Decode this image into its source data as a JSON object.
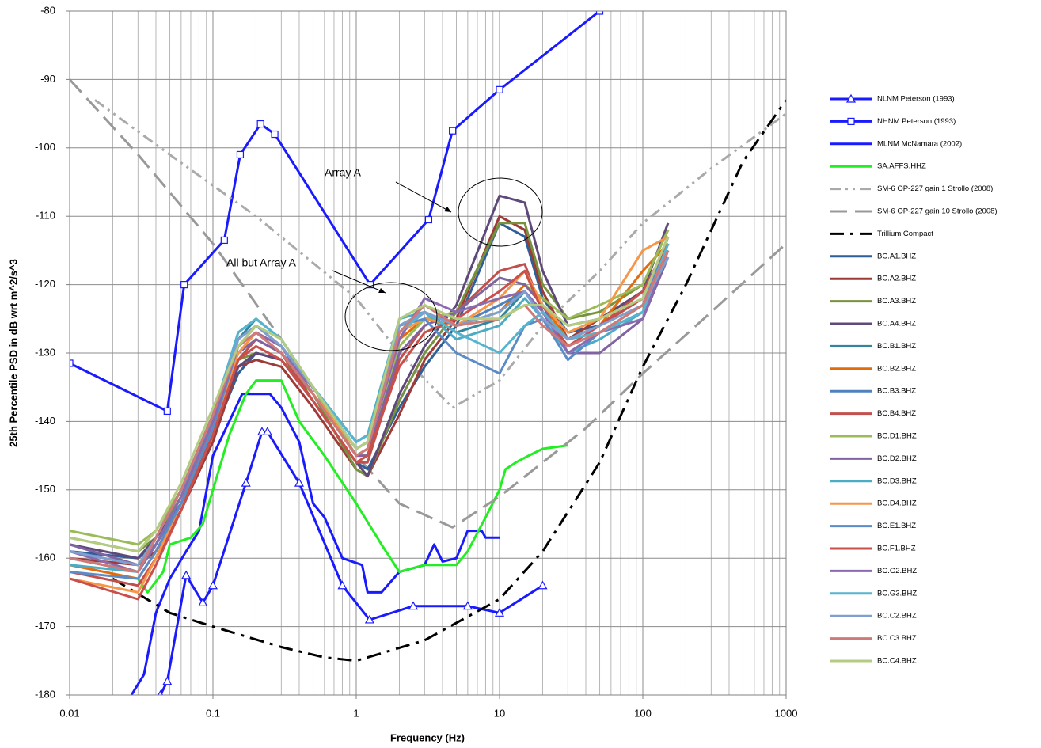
{
  "chart_data": {
    "type": "line",
    "x_label": "Frequency (Hz)",
    "y_label": "25th Percentile PSD in dB wrt m^2/s^3",
    "xscale": "log",
    "xlim": [
      0.01,
      1000
    ],
    "ylim": [
      -180,
      -80
    ],
    "xticks": [
      0.01,
      0.1,
      1,
      10,
      100,
      1000
    ],
    "xminorticks": [
      0.02,
      0.03,
      0.04,
      0.05,
      0.06,
      0.07,
      0.08,
      0.09,
      0.2,
      0.3,
      0.4,
      0.5,
      0.6,
      0.7,
      0.8,
      0.9,
      2,
      3,
      4,
      5,
      6,
      7,
      8,
      9,
      20,
      30,
      40,
      50,
      60,
      70,
      80,
      90,
      200,
      300,
      400,
      500,
      600,
      700,
      800,
      900
    ],
    "yticks": [
      -180,
      -170,
      -160,
      -150,
      -140,
      -130,
      -120,
      -110,
      -100,
      -90,
      -80
    ],
    "grid": true,
    "legend": "right",
    "annotations": [
      "Array A",
      "All but Array A"
    ],
    "x": [
      0.01,
      0.03,
      0.04,
      0.06,
      0.1,
      0.15,
      0.2,
      0.3,
      0.5,
      1,
      1.2,
      2,
      3,
      5,
      10,
      15,
      20,
      30,
      50,
      100,
      150
    ],
    "series": [
      {
        "name": "NLNM Peterson (1993)",
        "color": "#1a1aff",
        "marker": "triangle",
        "x": [
          0.043,
          0.048,
          0.065,
          0.085,
          0.1,
          0.17,
          0.22,
          0.24,
          0.4,
          0.8,
          1.24,
          2.5,
          6,
          10,
          20
        ],
        "values": [
          -180,
          -178,
          -162.5,
          -166.5,
          -164,
          -149,
          -141.5,
          -141.5,
          -149,
          -164,
          -169,
          -167,
          -167,
          -168,
          -164
        ]
      },
      {
        "name": "NHNM Peterson (1993)",
        "color": "#1a1aff",
        "marker": "square",
        "x": [
          0.01,
          0.048,
          0.063,
          0.12,
          0.155,
          0.215,
          0.27,
          1.25,
          3.2,
          4.7,
          10,
          50
        ],
        "values": [
          -131.5,
          -138.5,
          -120,
          -113.5,
          -101,
          -96.5,
          -98,
          -120,
          -110.5,
          -97.5,
          -91.5,
          -80
        ]
      },
      {
        "name": "MLNM McNamara (2002)",
        "color": "#1a1aff",
        "x": [
          0.027,
          0.033,
          0.04,
          0.05,
          0.065,
          0.08,
          0.1,
          0.13,
          0.16,
          0.25,
          0.3,
          0.4,
          0.5,
          0.6,
          0.8,
          1.1,
          1.2,
          1.5,
          2,
          3,
          3.5,
          4,
          5,
          6,
          7.5,
          8,
          10
        ],
        "values": [
          -180,
          -177,
          -168,
          -163,
          -159,
          -156,
          -145,
          -140,
          -136,
          -136,
          -138,
          -143,
          -152,
          -154,
          -160,
          -161,
          -165,
          -165,
          -162,
          -161,
          -158,
          -160.5,
          -160,
          -156,
          -156,
          -157,
          -157
        ]
      },
      {
        "name": "SA.AFFS.HHZ",
        "color": "#22ee22",
        "x": [
          0.03,
          0.035,
          0.045,
          0.05,
          0.07,
          0.085,
          0.1,
          0.13,
          0.17,
          0.2,
          0.3,
          0.4,
          0.6,
          1,
          1.5,
          2,
          3,
          5,
          6,
          8,
          10,
          11,
          13,
          16,
          20,
          30
        ],
        "values": [
          -163,
          -165,
          -162,
          -158,
          -157,
          -155,
          -150,
          -142,
          -136,
          -134,
          -134,
          -140,
          -145,
          -152,
          -158,
          -162,
          -161,
          -161,
          -159,
          -154,
          -150,
          -147,
          -146,
          -145,
          -144,
          -143.5
        ]
      },
      {
        "name": "SM-6 OP-227 gain 1 Strollo (2008)",
        "color": "#aaaaaa",
        "dash": "dash-dot-dot",
        "x": [
          0.015,
          0.05,
          0.2,
          1,
          2,
          4.7,
          10,
          20,
          50,
          100,
          300,
          1000
        ],
        "values": [
          -93,
          -101,
          -110,
          -122,
          -130,
          -138,
          -134,
          -126,
          -118,
          -111,
          -103,
          -95
        ]
      },
      {
        "name": "SM-6 OP-227 gain 10 Strollo (2008)",
        "color": "#999999",
        "dash": "long-dash",
        "x": [
          0.01,
          0.03,
          0.1,
          0.3,
          1,
          2,
          4.7,
          10,
          20,
          40,
          100,
          300,
          1000
        ],
        "values": [
          -90,
          -101,
          -114,
          -128,
          -145,
          -152,
          -155.5,
          -151,
          -146,
          -141,
          -133,
          -124,
          -114
        ]
      },
      {
        "name": "Trillium Compact",
        "color": "#000000",
        "dash": "dash-dot",
        "x": [
          0.02,
          0.05,
          0.1,
          0.3,
          0.6,
          1,
          3,
          10,
          20,
          50,
          100,
          200,
          500,
          1000
        ],
        "values": [
          -163,
          -168,
          -170,
          -173,
          -174.5,
          -175,
          -172,
          -166,
          -159,
          -146,
          -132,
          -120,
          -102,
          -93
        ]
      },
      {
        "name": "BC.A1.BHZ",
        "color": "#2f5f98",
        "values": [
          -159,
          -160,
          -158,
          -152,
          -142,
          -133,
          -130,
          -131,
          -137,
          -146,
          -147,
          -138,
          -132,
          -126,
          -111,
          -113,
          -122,
          -127,
          -126,
          -122,
          -113
        ]
      },
      {
        "name": "BC.A2.BHZ",
        "color": "#9e3a38",
        "values": [
          -160,
          -161,
          -159,
          -153,
          -143,
          -132,
          -131,
          -132,
          -138,
          -147,
          -148,
          -139,
          -131,
          -125,
          -110,
          -112,
          -121,
          -128,
          -125,
          -121,
          -114
        ]
      },
      {
        "name": "BC.A3.BHZ",
        "color": "#76923c",
        "values": [
          -157,
          -159,
          -157,
          -151,
          -141,
          -131,
          -130,
          -131,
          -136,
          -147,
          -148,
          -137,
          -130,
          -124,
          -111,
          -111,
          -120,
          -125,
          -124,
          -120,
          -112
        ]
      },
      {
        "name": "BC.A4.BHZ",
        "color": "#5f497a",
        "values": [
          -158,
          -160,
          -157,
          -152,
          -141,
          -132,
          -130,
          -131,
          -137,
          -146,
          -148,
          -136,
          -129,
          -123,
          -107,
          -108,
          -118,
          -126,
          -125,
          -121,
          -111
        ]
      },
      {
        "name": "BC.B1.BHZ",
        "color": "#31859c",
        "values": [
          -160,
          -162,
          -158,
          -151,
          -140,
          -128,
          -125,
          -128,
          -135,
          -143,
          -142,
          -126,
          -124,
          -127,
          -125,
          -121,
          -124,
          -129,
          -127,
          -124,
          -113
        ]
      },
      {
        "name": "BC.B2.BHZ",
        "color": "#e36c0a",
        "values": [
          -161,
          -163,
          -159,
          -152,
          -140,
          -129,
          -126,
          -129,
          -136,
          -145,
          -144,
          -128,
          -125,
          -126,
          -124,
          -120,
          -123,
          -128,
          -126,
          -118,
          -114
        ]
      },
      {
        "name": "BC.B3.BHZ",
        "color": "#4f81bd",
        "values": [
          -159,
          -161,
          -158,
          -152,
          -141,
          -129,
          -127,
          -130,
          -135,
          -144,
          -143,
          -127,
          -124,
          -126,
          -123,
          -121,
          -125,
          -128,
          -127,
          -123,
          -115
        ]
      },
      {
        "name": "BC.B4.BHZ",
        "color": "#c0504d",
        "values": [
          -162,
          -164,
          -160,
          -153,
          -142,
          -131,
          -128,
          -130,
          -137,
          -146,
          -146,
          -131,
          -126,
          -124,
          -118,
          -117,
          -124,
          -128,
          -126,
          -122,
          -113
        ]
      },
      {
        "name": "BC.D1.BHZ",
        "color": "#9bbb59",
        "values": [
          -156,
          -158,
          -156,
          -150,
          -139,
          -129,
          -127,
          -129,
          -135,
          -145,
          -145,
          -129,
          -125,
          -124,
          -119,
          -120,
          -122,
          -125,
          -123,
          -120,
          -112
        ]
      },
      {
        "name": "BC.D2.BHZ",
        "color": "#8064a2",
        "values": [
          -158,
          -161,
          -158,
          -151,
          -140,
          -130,
          -128,
          -130,
          -136,
          -145,
          -145,
          -130,
          -126,
          -124,
          -119,
          -120,
          -123,
          -130,
          -130,
          -125,
          -116
        ]
      },
      {
        "name": "BC.D3.BHZ",
        "color": "#4bacc6",
        "values": [
          -161,
          -162,
          -158,
          -151,
          -139,
          -127,
          -125,
          -128,
          -135,
          -143,
          -142,
          -125,
          -124,
          -128,
          -126,
          -122,
          -125,
          -130,
          -128,
          -124,
          -114
        ]
      },
      {
        "name": "BC.D4.BHZ",
        "color": "#f79646",
        "values": [
          -163,
          -165,
          -160,
          -152,
          -141,
          -130,
          -127,
          -129,
          -136,
          -144,
          -143,
          -127,
          -125,
          -126,
          -122,
          -118,
          -123,
          -127,
          -125,
          -115,
          -113
        ]
      },
      {
        "name": "BC.E1.BHZ",
        "color": "#5b8cc8",
        "values": [
          -162,
          -163,
          -159,
          -152,
          -141,
          -129,
          -126,
          -129,
          -135,
          -144,
          -143,
          -126,
          -125,
          -130,
          -133,
          -126,
          -125,
          -131,
          -127,
          -123,
          -114
        ]
      },
      {
        "name": "BC.F1.BHZ",
        "color": "#c94f4b",
        "values": [
          -163,
          -166,
          -161,
          -153,
          -142,
          -131,
          -129,
          -131,
          -137,
          -146,
          -145,
          -132,
          -127,
          -125,
          -121,
          -118,
          -124,
          -129,
          -126,
          -121,
          -114
        ]
      },
      {
        "name": "BC.G2.BHZ",
        "color": "#8a6bb0",
        "values": [
          -159,
          -162,
          -158,
          -151,
          -140,
          -129,
          -127,
          -129,
          -136,
          -145,
          -144,
          -128,
          -122,
          -124,
          -122,
          -121,
          -124,
          -130,
          -127,
          -125,
          -115
        ]
      },
      {
        "name": "BC.G3.BHZ",
        "color": "#56b4ce",
        "values": [
          -160,
          -162,
          -157,
          -150,
          -139,
          -127,
          -125,
          -128,
          -135,
          -143,
          -142,
          -127,
          -124,
          -127,
          -130,
          -126,
          -124,
          -128,
          -127,
          -124,
          -114
        ]
      },
      {
        "name": "BC.C2.BHZ",
        "color": "#7f9fcf",
        "values": [
          -159,
          -161,
          -157,
          -150,
          -139,
          -128,
          -126,
          -129,
          -135,
          -144,
          -143,
          -126,
          -124,
          -126,
          -124,
          -121,
          -125,
          -128,
          -126,
          -123,
          -116
        ]
      },
      {
        "name": "BC.C3.BHZ",
        "color": "#d07a78",
        "values": [
          -160,
          -162,
          -157,
          -150,
          -139,
          -129,
          -127,
          -130,
          -136,
          -145,
          -144,
          -127,
          -123,
          -126,
          -125,
          -123,
          -126,
          -129,
          -127,
          -123,
          -115
        ]
      },
      {
        "name": "BC.C4.BHZ",
        "color": "#b3cc82",
        "values": [
          -157,
          -159,
          -156,
          -149,
          -138,
          -129,
          -126,
          -128,
          -135,
          -144,
          -143,
          -125,
          -123,
          -125,
          -125,
          -123,
          -123,
          -126,
          -125,
          -122,
          -113
        ]
      }
    ]
  }
}
